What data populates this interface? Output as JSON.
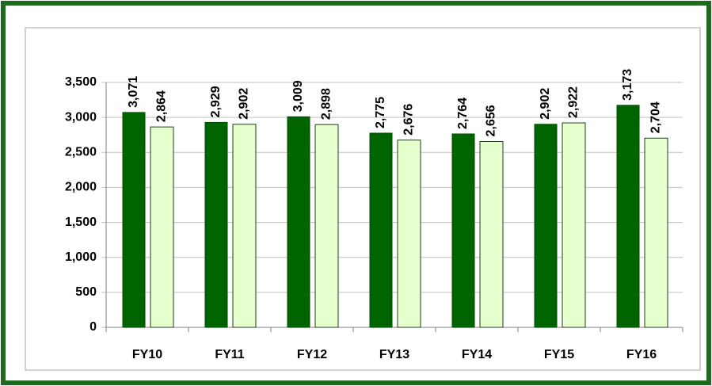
{
  "chart_data": {
    "type": "bar",
    "categories": [
      "FY10",
      "FY11",
      "FY12",
      "FY13",
      "FY14",
      "FY15",
      "FY16"
    ],
    "series": [
      {
        "color": "#006400",
        "values": [
          3071,
          2929,
          3009,
          2775,
          2764,
          2902,
          3173
        ],
        "value_labels": [
          "3,071",
          "2,929",
          "3,009",
          "2,775",
          "2,764",
          "2,902",
          "3,173"
        ]
      },
      {
        "color": "#e6ffcc",
        "values": [
          2864,
          2902,
          2898,
          2676,
          2656,
          2922,
          2704
        ],
        "value_labels": [
          "2,864",
          "2,902",
          "2,898",
          "2,676",
          "2,656",
          "2,922",
          "2,704"
        ]
      }
    ],
    "ylim": [
      0,
      3500
    ],
    "yticks": [
      0,
      500,
      {
        "value": 1000,
        "label": "1,000"
      },
      {
        "value": 1500,
        "label": "1,500"
      },
      {
        "value": 2000,
        "label": "2,000"
      },
      {
        "value": 2500,
        "label": "2,500"
      },
      {
        "value": 3000,
        "label": "3,000"
      },
      {
        "value": 3500,
        "label": "3,500"
      }
    ],
    "grid": true
  }
}
